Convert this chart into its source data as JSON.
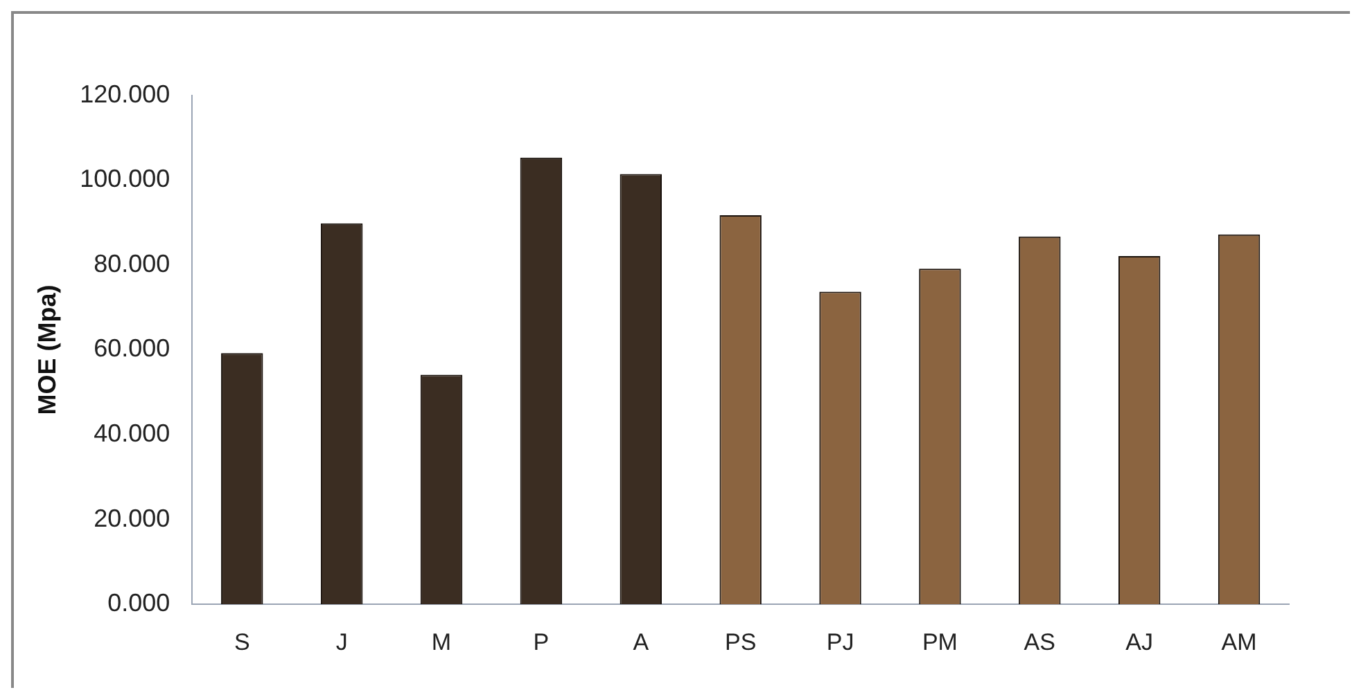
{
  "chart_data": {
    "type": "bar",
    "ylabel": "MOE (Mpa)",
    "categories": [
      "S",
      "J",
      "M",
      "P",
      "A",
      "PS",
      "PJ",
      "PM",
      "AS",
      "AJ",
      "AM"
    ],
    "values": [
      59.2,
      89.8,
      54.1,
      105.3,
      101.4,
      91.7,
      73.7,
      79.1,
      86.7,
      82.1,
      87.2
    ],
    "colors": [
      "#3b2d22",
      "#3b2d22",
      "#3b2d22",
      "#3b2d22",
      "#3b2d22",
      "#8b6440",
      "#8b6440",
      "#8b6440",
      "#8b6440",
      "#8b6440",
      "#8b6440"
    ],
    "ylim": [
      0,
      120
    ],
    "yticks": [
      {
        "value": 0,
        "label": "0.000"
      },
      {
        "value": 20,
        "label": "20.000"
      },
      {
        "value": 40,
        "label": "40.000"
      },
      {
        "value": 60,
        "label": "60.000"
      },
      {
        "value": 80,
        "label": "80.000"
      },
      {
        "value": 100,
        "label": "100.000"
      },
      {
        "value": 120,
        "label": "120.000"
      }
    ],
    "grid": false
  }
}
